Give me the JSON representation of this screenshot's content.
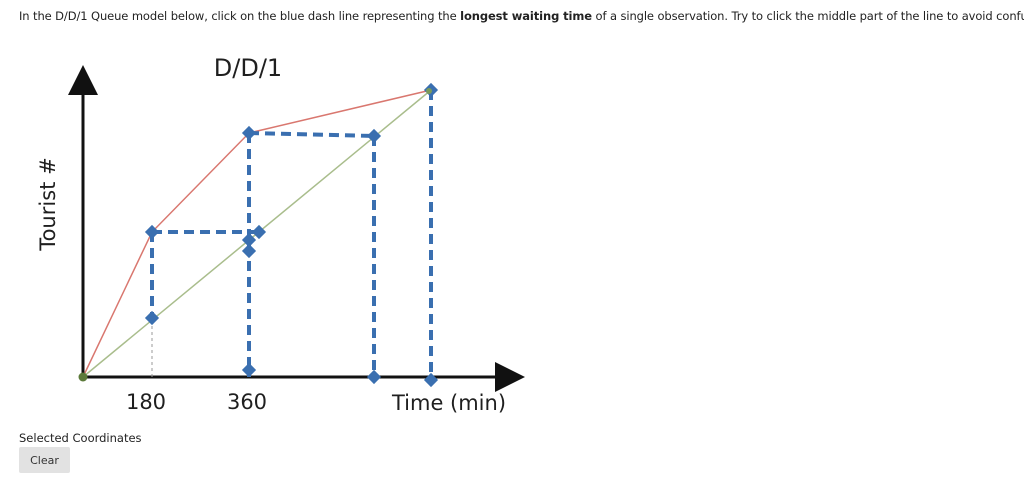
{
  "instruction": {
    "before": "In the D/D/1 Queue model below, click on the blue dash line representing the ",
    "bold": "longest waiting time",
    "after": " of a single observation.  Try to click the middle part of the line to avoid confusion."
  },
  "chart_data": {
    "type": "line",
    "title": "D/D/1",
    "ylabel": "Tourist #",
    "xlabel": "Time (min)",
    "x_ticks": [
      "180",
      "360"
    ],
    "series": [
      {
        "color": "#d9776f"
      },
      {
        "color": "#a9bd8c"
      }
    ],
    "dash_color": "#3a6fb0"
  },
  "footer": {
    "selected_label": "Selected Coordinates",
    "clear_label": "Clear"
  }
}
